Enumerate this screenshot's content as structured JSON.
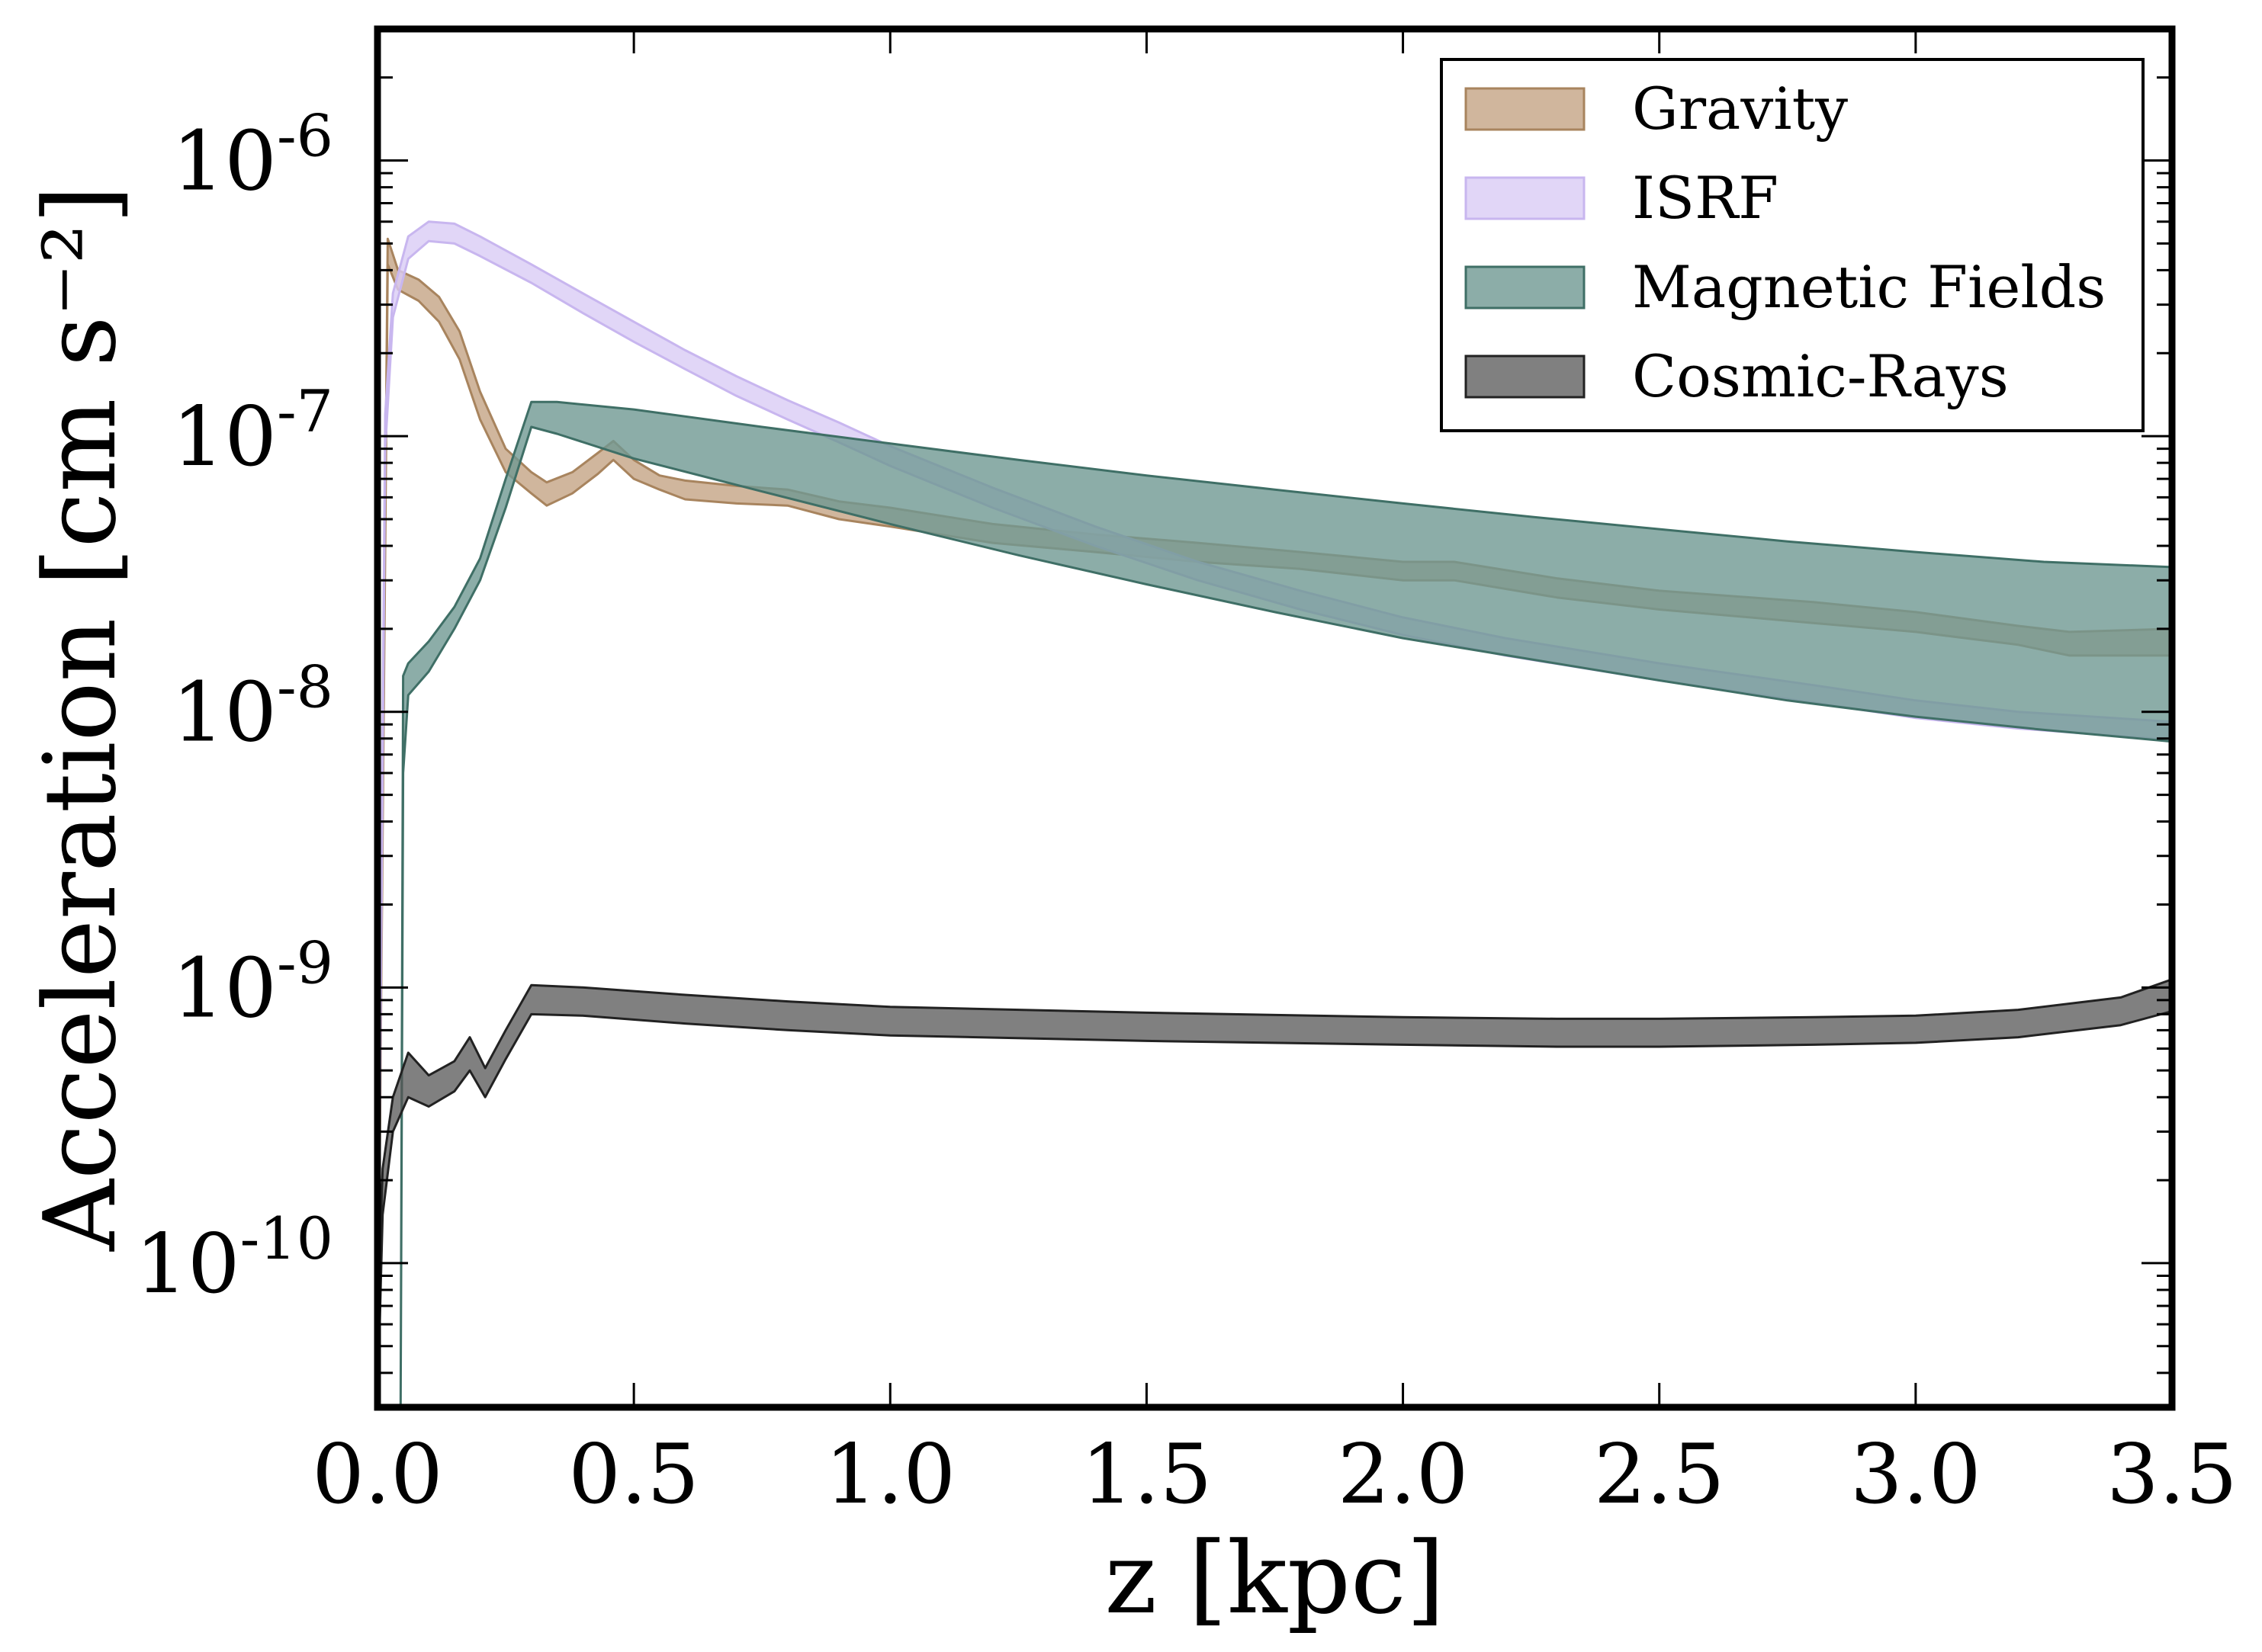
{
  "chart_data": {
    "type": "area",
    "xlabel": "z [kpc]",
    "ylabel": "Acceleration [cm s⁻²]",
    "xlim": [
      0,
      3.5
    ],
    "ylim": [
      3e-11,
      3e-06
    ],
    "yscale": "log",
    "grid": false,
    "legend_position": "top-right",
    "x_ticks": [
      0.0,
      0.5,
      1.0,
      1.5,
      2.0,
      2.5,
      3.0,
      3.5
    ],
    "x_tick_labels": [
      "0.0",
      "0.5",
      "1.0",
      "1.5",
      "2.0",
      "2.5",
      "3.0",
      "3.5"
    ],
    "y_ticks": [
      {
        "value": 1e-10,
        "base": "10",
        "exp": "-10"
      },
      {
        "value": 1e-09,
        "base": "10",
        "exp": "-9"
      },
      {
        "value": 1e-08,
        "base": "10",
        "exp": "-8"
      },
      {
        "value": 1e-07,
        "base": "10",
        "exp": "-7"
      },
      {
        "value": 1e-06,
        "base": "10",
        "exp": "-6"
      }
    ],
    "series": [
      {
        "name": "Gravity",
        "fill": "#c4a484",
        "edge": "#a8845e",
        "opacity": 0.8,
        "x": [
          0.0,
          0.02,
          0.04,
          0.08,
          0.12,
          0.16,
          0.2,
          0.25,
          0.3,
          0.33,
          0.38,
          0.43,
          0.46,
          0.5,
          0.55,
          0.6,
          0.7,
          0.8,
          0.9,
          1.0,
          1.2,
          1.4,
          1.6,
          1.8,
          2.0,
          2.1,
          2.3,
          2.5,
          2.8,
          3.0,
          3.2,
          3.3,
          3.5
        ],
        "lower": [
          3e-11,
          4.2e-07,
          3.4e-07,
          3.1e-07,
          2.6e-07,
          1.9e-07,
          1.15e-07,
          7.4e-08,
          6.2e-08,
          5.6e-08,
          6.2e-08,
          7.3e-08,
          8.2e-08,
          7e-08,
          6.4e-08,
          5.9e-08,
          5.7e-08,
          5.6e-08,
          5e-08,
          4.7e-08,
          4.1e-08,
          3.8e-08,
          3.5e-08,
          3.3e-08,
          3e-08,
          3e-08,
          2.6e-08,
          2.35e-08,
          2.1e-08,
          1.95e-08,
          1.75e-08,
          1.6e-08,
          1.6e-08
        ],
        "upper": [
          6e-11,
          5.2e-07,
          4e-07,
          3.7e-07,
          3.2e-07,
          2.4e-07,
          1.45e-07,
          9e-08,
          7.4e-08,
          6.8e-08,
          7.4e-08,
          8.7e-08,
          9.6e-08,
          8.2e-08,
          7.2e-08,
          6.9e-08,
          6.6e-08,
          6.4e-08,
          5.8e-08,
          5.5e-08,
          4.8e-08,
          4.4e-08,
          4.1e-08,
          3.8e-08,
          3.5e-08,
          3.5e-08,
          3.05e-08,
          2.75e-08,
          2.5e-08,
          2.3e-08,
          2.05e-08,
          1.95e-08,
          2e-08
        ]
      },
      {
        "name": "ISRF",
        "fill": "#d9ccf5",
        "edge": "#c8b6ef",
        "opacity": 0.8,
        "x": [
          0.0,
          0.015,
          0.03,
          0.06,
          0.1,
          0.15,
          0.2,
          0.3,
          0.4,
          0.5,
          0.6,
          0.7,
          0.8,
          0.9,
          1.0,
          1.2,
          1.4,
          1.6,
          1.8,
          2.0,
          2.2,
          2.5,
          2.8,
          3.0,
          3.2,
          3.5
        ],
        "lower": [
          3e-11,
          9e-08,
          2.7e-07,
          4.4e-07,
          5.1e-07,
          5e-07,
          4.5e-07,
          3.6e-07,
          2.8e-07,
          2.2e-07,
          1.75e-07,
          1.4e-07,
          1.15e-07,
          9.5e-08,
          7.8e-08,
          5.5e-08,
          4e-08,
          3e-08,
          2.35e-08,
          1.9e-08,
          1.6e-08,
          1.3e-08,
          1.08e-08,
          9.5e-09,
          8.7e-09,
          7.9e-09
        ],
        "upper": [
          6e-11,
          1.2e-07,
          3.3e-07,
          5.3e-07,
          6e-07,
          5.9e-07,
          5.3e-07,
          4.2e-07,
          3.3e-07,
          2.6e-07,
          2.05e-07,
          1.65e-07,
          1.35e-07,
          1.12e-07,
          9.2e-08,
          6.5e-08,
          4.7e-08,
          3.5e-08,
          2.75e-08,
          2.2e-08,
          1.85e-08,
          1.5e-08,
          1.25e-08,
          1.1e-08,
          1e-08,
          9.2e-09
        ]
      },
      {
        "name": "Magnetic Fields",
        "fill": "#6f9892",
        "edge": "#3f6f66",
        "opacity": 0.8,
        "x": [
          0.045,
          0.05,
          0.06,
          0.1,
          0.15,
          0.2,
          0.25,
          0.3,
          0.35,
          0.5,
          0.75,
          1.0,
          1.25,
          1.5,
          1.75,
          2.0,
          2.25,
          2.5,
          2.75,
          3.0,
          3.25,
          3.5
        ],
        "lower": [
          3e-11,
          6e-09,
          1.15e-08,
          1.4e-08,
          2e-08,
          3e-08,
          5.5e-08,
          1.08e-07,
          1.02e-07,
          8.3e-08,
          6.3e-08,
          4.8e-08,
          3.7e-08,
          2.9e-08,
          2.3e-08,
          1.85e-08,
          1.55e-08,
          1.3e-08,
          1.1e-08,
          9.6e-09,
          8.6e-09,
          7.8e-09
        ],
        "upper": [
          3e-11,
          1.35e-08,
          1.5e-08,
          1.8e-08,
          2.4e-08,
          3.6e-08,
          7e-08,
          1.33e-07,
          1.33e-07,
          1.25e-07,
          1.08e-07,
          9.4e-08,
          8.2e-08,
          7.2e-08,
          6.4e-08,
          5.7e-08,
          5.1e-08,
          4.6e-08,
          4.15e-08,
          3.8e-08,
          3.5e-08,
          3.35e-08
        ]
      },
      {
        "name": "Cosmic-Rays",
        "fill": "#555555",
        "edge": "#222222",
        "opacity": 0.75,
        "x": [
          0.0,
          0.01,
          0.03,
          0.06,
          0.1,
          0.15,
          0.18,
          0.21,
          0.25,
          0.3,
          0.4,
          0.6,
          0.8,
          1.0,
          1.5,
          2.0,
          2.3,
          2.5,
          2.8,
          3.0,
          3.2,
          3.4,
          3.5
        ],
        "lower": [
          3e-11,
          1.5e-10,
          3e-10,
          4e-10,
          3.7e-10,
          4.2e-10,
          5e-10,
          4e-10,
          5.5e-10,
          8e-10,
          7.9e-10,
          7.4e-10,
          7e-10,
          6.7e-10,
          6.4e-10,
          6.2e-10,
          6.1e-10,
          6.1e-10,
          6.2e-10,
          6.3e-10,
          6.6e-10,
          7.3e-10,
          8.2e-10
        ],
        "upper": [
          6e-11,
          2.2e-10,
          4e-10,
          5.8e-10,
          4.8e-10,
          5.4e-10,
          6.6e-10,
          5.1e-10,
          7e-10,
          1.02e-09,
          1e-09,
          9.4e-10,
          8.9e-10,
          8.5e-10,
          8.1e-10,
          7.8e-10,
          7.7e-10,
          7.7e-10,
          7.8e-10,
          7.9e-10,
          8.3e-10,
          9.2e-10,
          1.07e-09
        ]
      }
    ]
  }
}
